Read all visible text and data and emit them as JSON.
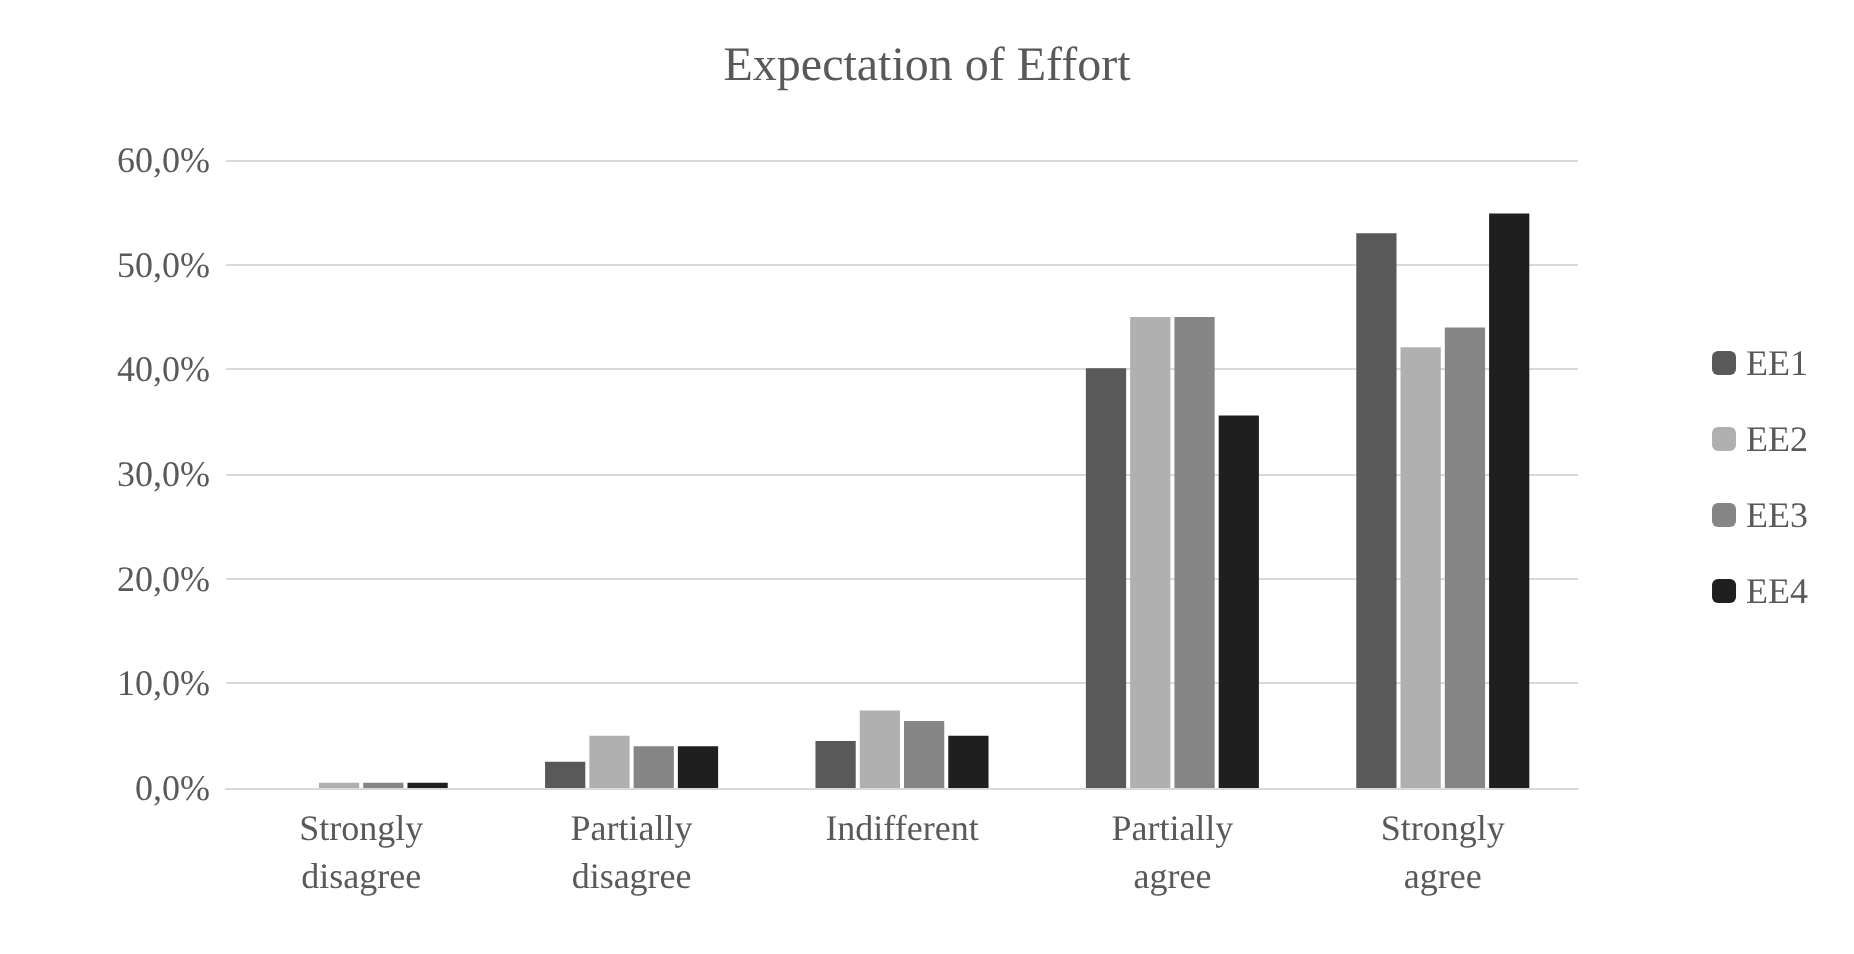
{
  "chart_data": {
    "type": "bar",
    "title": "Expectation of Effort",
    "categories": [
      "Strongly\ndisagree",
      "Partially\ndisagree",
      "Indifferent",
      "Partially\nagree",
      "Strongly\nagree"
    ],
    "series": [
      {
        "name": "EE1",
        "color": "#595959",
        "values": [
          0,
          2.5,
          4.5,
          40.1,
          53.0
        ]
      },
      {
        "name": "EE2",
        "color": "#b0b0b0",
        "values": [
          0.5,
          5.0,
          7.4,
          45.0,
          42.1
        ]
      },
      {
        "name": "EE3",
        "color": "#858585",
        "values": [
          0.5,
          4.0,
          6.4,
          45.0,
          44.0
        ]
      },
      {
        "name": "EE4",
        "color": "#1f1f1f",
        "values": [
          0.5,
          4.0,
          5.0,
          35.6,
          54.9
        ]
      }
    ],
    "ylim": [
      0,
      60
    ],
    "yticks": [
      {
        "value": 0,
        "label": "0,0%"
      },
      {
        "value": 10,
        "label": "10,0%"
      },
      {
        "value": 20,
        "label": "20,0%"
      },
      {
        "value": 30,
        "label": "30,0%"
      },
      {
        "value": 40,
        "label": "40,0%"
      },
      {
        "value": 50,
        "label": "50,0%"
      },
      {
        "value": 60,
        "label": "60,0%"
      }
    ],
    "grid": "y",
    "legend": "right"
  }
}
